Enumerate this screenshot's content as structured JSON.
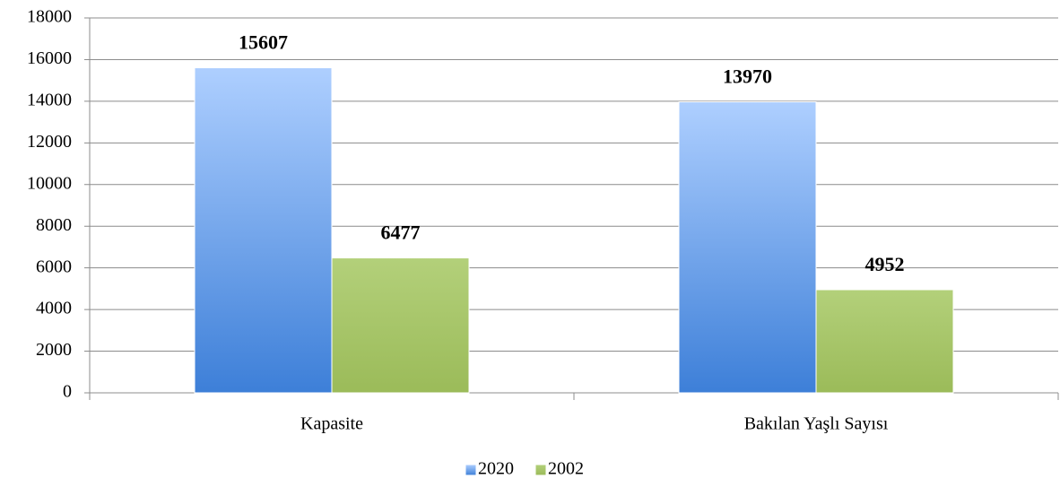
{
  "chart_data": {
    "type": "bar",
    "categories": [
      "Kapasite",
      "Bakılan Yaşlı Sayısı"
    ],
    "series": [
      {
        "name": "2020",
        "color": "#4f8ee0",
        "values": [
          15607,
          13970
        ]
      },
      {
        "name": "2002",
        "color": "#9bbb59",
        "values": [
          6477,
          4952
        ]
      }
    ],
    "ylim": [
      0,
      18000
    ],
    "yticks": [
      0,
      2000,
      4000,
      6000,
      8000,
      10000,
      12000,
      14000,
      16000,
      18000
    ],
    "grid": true,
    "legend": "bottom"
  }
}
